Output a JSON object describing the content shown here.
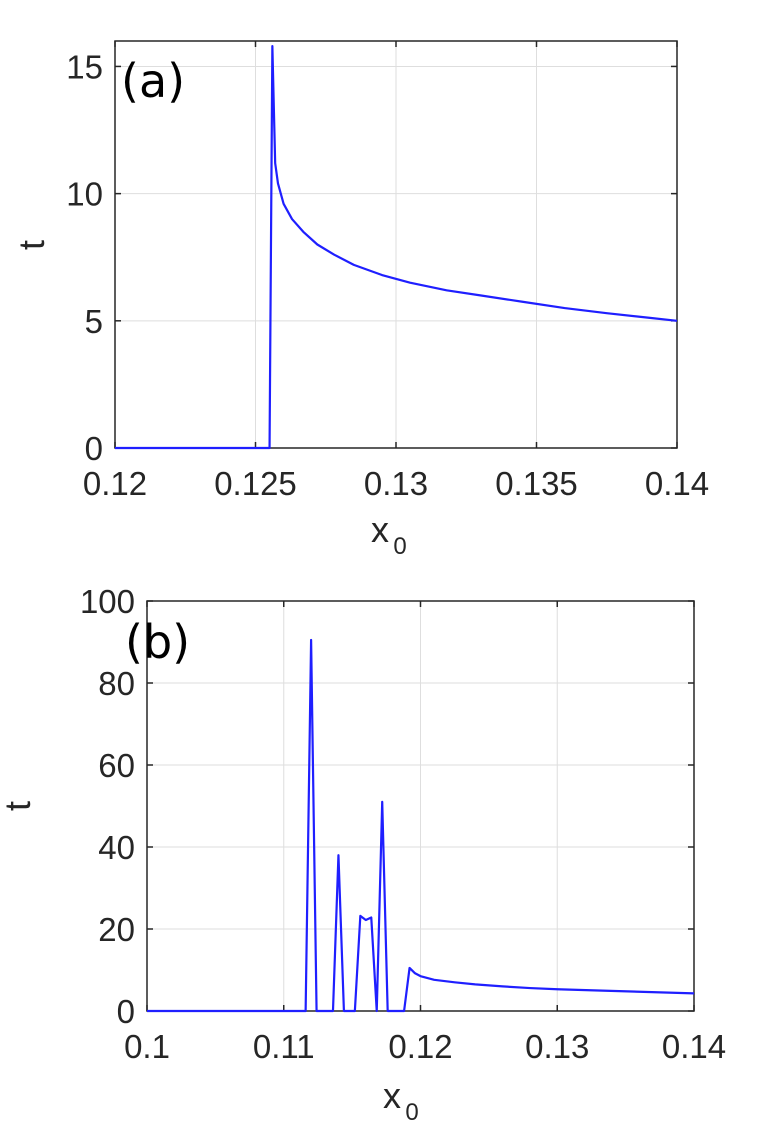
{
  "chart_data": [
    {
      "type": "line",
      "panel_label": "(a)",
      "xlabel": "x",
      "xlabel_sub": "0",
      "ylabel": "t",
      "xlim": [
        0.12,
        0.14
      ],
      "ylim": [
        0,
        16
      ],
      "xticks": [
        0.12,
        0.125,
        0.13,
        0.135,
        0.14
      ],
      "xtick_labels": [
        "0.12",
        "0.125",
        "0.13",
        "0.135",
        "0.14"
      ],
      "yticks": [
        0,
        5,
        10,
        15
      ],
      "ytick_labels": [
        "0",
        "5",
        "10",
        "15"
      ],
      "grid": true,
      "color": "#1f1fff",
      "x": [
        0.12,
        0.1254,
        0.1255,
        0.1256,
        0.1257,
        0.1258,
        0.126,
        0.1263,
        0.1267,
        0.1272,
        0.1278,
        0.1285,
        0.1295,
        0.1305,
        0.1318,
        0.133,
        0.1345,
        0.136,
        0.1375,
        0.139,
        0.14
      ],
      "y": [
        0,
        0,
        0,
        15.8,
        11.2,
        10.4,
        9.6,
        9.0,
        8.5,
        8.0,
        7.6,
        7.2,
        6.8,
        6.5,
        6.2,
        6.0,
        5.75,
        5.5,
        5.3,
        5.12,
        5.0
      ]
    },
    {
      "type": "line",
      "panel_label": "(b)",
      "xlabel": "x",
      "xlabel_sub": "0",
      "ylabel": "t",
      "xlim": [
        0.1,
        0.14
      ],
      "ylim": [
        0,
        100
      ],
      "xticks": [
        0.1,
        0.11,
        0.12,
        0.13,
        0.14
      ],
      "xtick_labels": [
        "0.1",
        "0.11",
        "0.12",
        "0.13",
        "0.14"
      ],
      "yticks": [
        0,
        20,
        40,
        60,
        80,
        100
      ],
      "ytick_labels": [
        "0",
        "20",
        "40",
        "60",
        "80",
        "100"
      ],
      "grid": true,
      "color": "#1f1fff",
      "x": [
        0.1,
        0.1116,
        0.112,
        0.1124,
        0.1136,
        0.114,
        0.1144,
        0.1152,
        0.1156,
        0.116,
        0.1164,
        0.1168,
        0.1172,
        0.1176,
        0.118,
        0.1188,
        0.1192,
        0.1196,
        0.12,
        0.121,
        0.1225,
        0.124,
        0.126,
        0.128,
        0.13,
        0.133,
        0.136,
        0.14
      ],
      "y": [
        0,
        0,
        90.5,
        0,
        0,
        38,
        0,
        0,
        23.2,
        22.2,
        22.8,
        0,
        51,
        0,
        0,
        0,
        10.5,
        9.2,
        8.5,
        7.6,
        7.0,
        6.5,
        6.0,
        5.6,
        5.3,
        5.0,
        4.7,
        4.3
      ]
    }
  ]
}
